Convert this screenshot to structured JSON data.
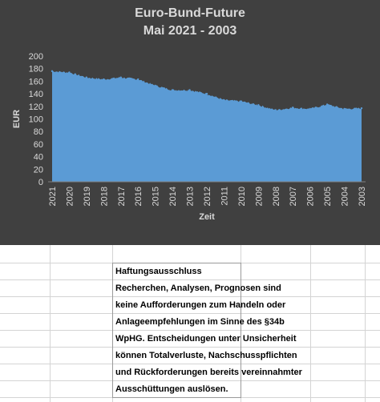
{
  "chart_data": {
    "type": "area",
    "title": "Euro-Bund-Future",
    "subtitle": "Mai 2021 - 2003",
    "xlabel": "Zeit",
    "ylabel": "EUR",
    "ylim": [
      0,
      200
    ],
    "yticks": [
      0,
      20,
      40,
      60,
      80,
      100,
      120,
      140,
      160,
      180,
      200
    ],
    "grid": false,
    "x_reversed": true,
    "categories": [
      "2021",
      "2020",
      "2019",
      "2018",
      "2017",
      "2016",
      "2015",
      "2014",
      "2013",
      "2012",
      "2011",
      "2010",
      "2009",
      "2008",
      "2007",
      "2006",
      "2005",
      "2004",
      "2003"
    ],
    "values": [
      176,
      174,
      166,
      163,
      166,
      163,
      153,
      146,
      146,
      140,
      130,
      128,
      122,
      114,
      118,
      116,
      123,
      116,
      117
    ],
    "series_color": "#5b9bd5"
  },
  "disclaimer": {
    "lines": [
      "Haftungsausschluss",
      "Recherchen, Analysen, Prognosen sind",
      "keine Aufforderungen zum Handeln oder",
      "Anlageempfehlungen im Sinne des §34b",
      "WpHG. Entscheidungen unter Unsicherheit",
      "können Totalverluste, Nachschusspflichten",
      "und Rückforderungen bereits vereinnahmter",
      "Ausschüttungen auslösen."
    ]
  }
}
